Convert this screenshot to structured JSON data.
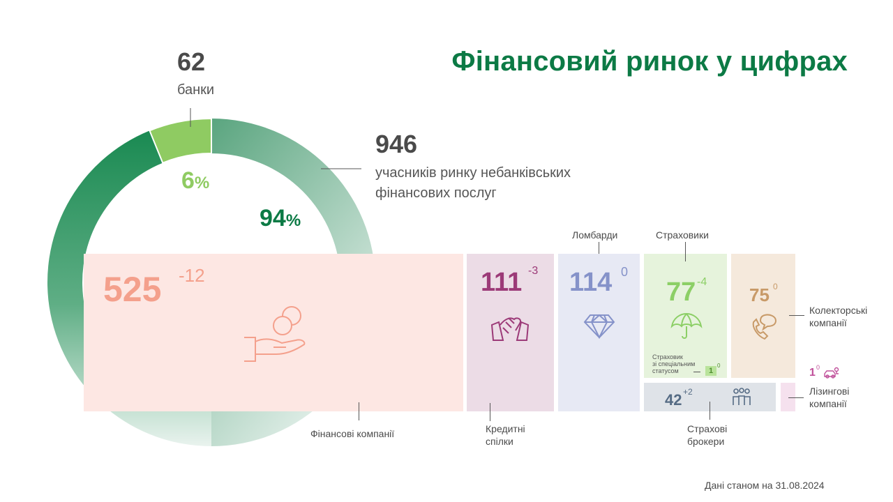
{
  "title": "Фінансовий ринок у цифрах",
  "banks": {
    "count": "62",
    "label": "банки",
    "percent": "6",
    "percent_sign": "%"
  },
  "nonbank": {
    "count": "946",
    "label_line1": "учасників ринку небанківських",
    "label_line2": "фінансових послуг",
    "percent": "94",
    "percent_sign": "%"
  },
  "tiles": {
    "finance": {
      "value": "525",
      "change": "-12",
      "caption": "Фінансові компанії",
      "color": "#f4a08c",
      "bg": "#fde7e3"
    },
    "credit_unions": {
      "value": "111",
      "change": "-3",
      "caption_line1": "Кредитні",
      "caption_line2": "спілки",
      "color": "#9c3a78",
      "bg": "#ecdce6"
    },
    "pawnshops": {
      "value": "114",
      "change": "0",
      "caption": "Ломбарди",
      "color": "#8592c9",
      "bg": "#e7e9f4"
    },
    "insurers": {
      "value": "77",
      "change": "-4",
      "caption": "Страховики",
      "special_line1": "Страховик",
      "special_line2": "зі спеціальним",
      "special_line3": "статусом",
      "special_value": "1",
      "special_change": "0",
      "color": "#8ccf66",
      "bg": "#e6f3dc"
    },
    "collectors": {
      "value": "75",
      "change": "0",
      "caption_line1": "Колекторські",
      "caption_line2": "компанії",
      "color": "#c89a68",
      "bg": "#f5e9dc"
    },
    "brokers": {
      "value": "42",
      "change": "+2",
      "caption_line1": "Страхові",
      "caption_line2": "брокери",
      "color": "#556b84",
      "bg": "#dfe3e8"
    },
    "leasing": {
      "value": "1",
      "change": "0",
      "caption_line1": "Лізингові",
      "caption_line2": "компанії",
      "color": "#c0509a",
      "bg": "#f5e1ee"
    }
  },
  "footnote": "Дані станом на 31.08.2024",
  "chart_data": {
    "type": "pie",
    "categories": [
      "банки",
      "учасників ринку небанківських фінансових послуг"
    ],
    "values": [
      62,
      946
    ],
    "percent": [
      6,
      94
    ],
    "colors": [
      "#8fcb62",
      "#1a8a52"
    ],
    "breakdown": {
      "type": "table",
      "categories": [
        "Фінансові компанії",
        "Кредитні спілки",
        "Ломбарди",
        "Страховики",
        "Колекторські компанії",
        "Страхові брокери",
        "Лізингові компанії",
        "Страховик зі спеціальним статусом"
      ],
      "values": [
        525,
        111,
        114,
        77,
        75,
        42,
        1,
        1
      ],
      "changes": [
        -12,
        -3,
        0,
        -4,
        0,
        2,
        0,
        0
      ]
    }
  }
}
